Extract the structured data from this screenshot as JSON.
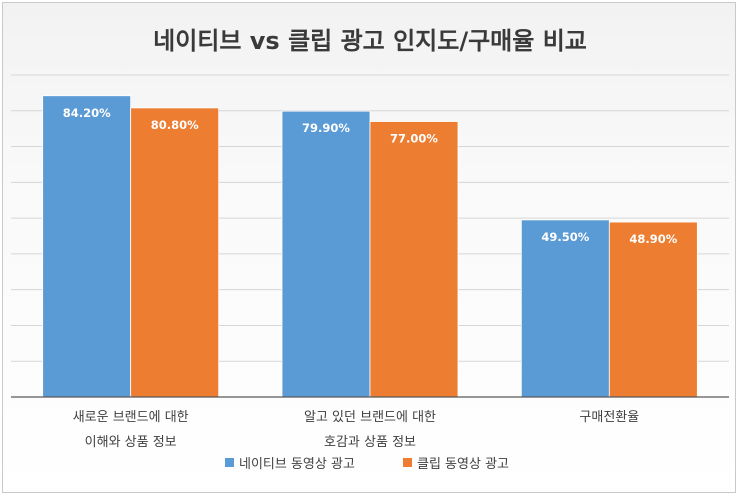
{
  "chart_data": {
    "type": "bar",
    "title": "네이티브 vs 클립 광고 인지도/구매율 비교",
    "categories": [
      [
        "새로운 브랜드에 대한",
        "이해와 상품 정보"
      ],
      [
        "알고 있던 브랜드에 대한",
        "호감과 상품 정보"
      ],
      [
        "구매전환율"
      ]
    ],
    "series": [
      {
        "name": "네이티브 동영상 광고",
        "color": "#5b9bd5",
        "values": [
          84.2,
          79.9,
          49.5
        ],
        "labels": [
          "84.20%",
          "79.90%",
          "49.50%"
        ]
      },
      {
        "name": "클립 동영상 광고",
        "color": "#ed7d31",
        "values": [
          80.8,
          77.0,
          48.9
        ],
        "labels": [
          "80.80%",
          "77.00%",
          "48.90%"
        ]
      }
    ],
    "ylim": [
      0,
      90
    ],
    "gridlines": true,
    "legend_position": "bottom",
    "xlabel": "",
    "ylabel": ""
  }
}
